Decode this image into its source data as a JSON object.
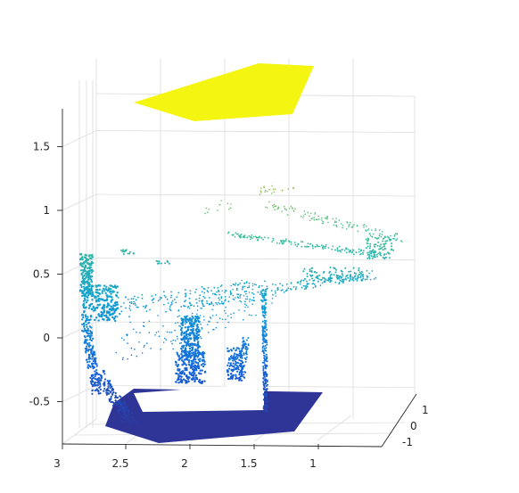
{
  "chart_data": {
    "type": "scatter",
    "dimensions": 3,
    "title": "",
    "xlabel": "",
    "ylabel": "",
    "zlabel": "",
    "xlim": [
      0.6,
      3
    ],
    "ylim": [
      -1.6,
      1.6
    ],
    "zlim": [
      -0.8,
      1.9
    ],
    "grid": true,
    "colormap": "parula",
    "color_by": "z",
    "x_ticks": [
      "3",
      "2.5",
      "2",
      "1.5",
      "1"
    ],
    "y_ticks": [
      "-1",
      "0",
      "1"
    ],
    "z_ticks": [
      "-0.5",
      "0",
      "0.5",
      "1",
      "1.5"
    ],
    "clusters": [
      {
        "name": "floor-slab",
        "z": -0.65,
        "x_range": [
          1.0,
          2.9
        ],
        "y_range": [
          -1.2,
          1.2
        ]
      },
      {
        "name": "ceiling-slab",
        "z": 1.85,
        "x_range": [
          1.2,
          2.6
        ],
        "y_range": [
          -1.0,
          1.0
        ]
      },
      {
        "name": "left-wall-column",
        "z_range": [
          -0.6,
          0.7
        ],
        "x": 2.9
      },
      {
        "name": "right-wall-column",
        "z_range": [
          -0.6,
          0.35
        ],
        "x": 1.4
      },
      {
        "name": "center-figure",
        "z_range": [
          -0.35,
          0.2
        ],
        "x": 2.05
      },
      {
        "name": "upper-beam",
        "z_range": [
          0.5,
          1.1
        ],
        "x_range": [
          1.1,
          2.0
        ]
      }
    ]
  }
}
